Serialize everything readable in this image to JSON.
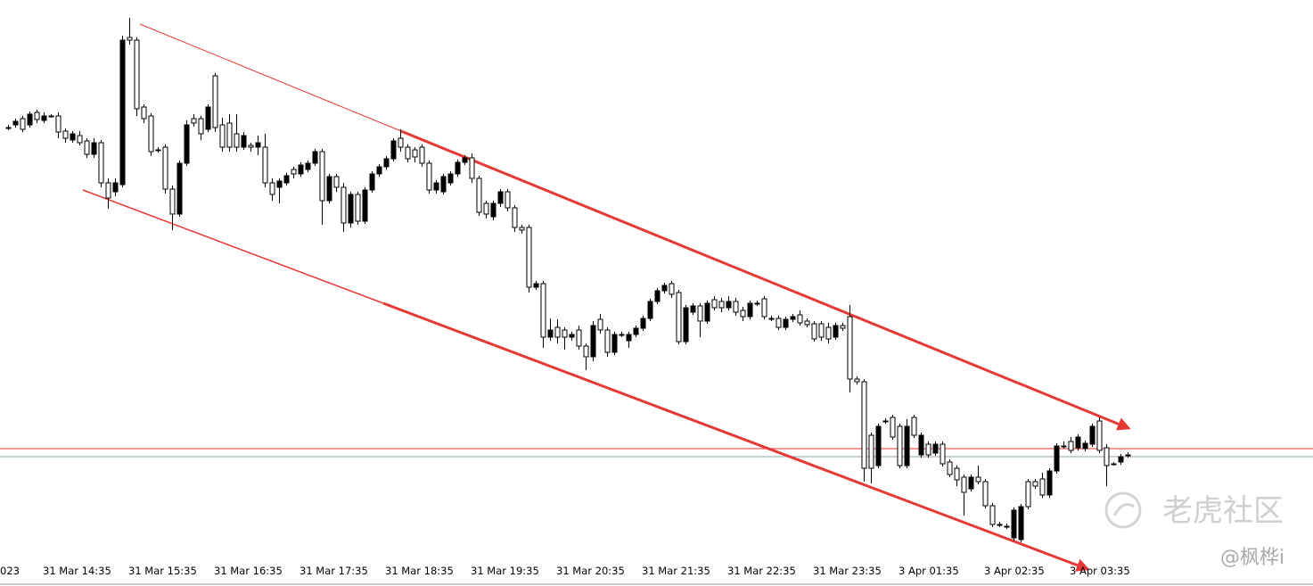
{
  "chart_data": {
    "type": "candlestick",
    "clipped_label": "023",
    "categories": [
      null,
      null,
      null,
      null,
      null,
      "31 Mar 14:35",
      null,
      null,
      null,
      null,
      null,
      null,
      null,
      null,
      null,
      null,
      null,
      "31 Mar 15:35",
      null,
      null,
      null,
      null,
      null,
      null,
      null,
      null,
      null,
      null,
      null,
      "31 Mar 16:35",
      null,
      null,
      null,
      null,
      null,
      null,
      null,
      null,
      null,
      null,
      null,
      "31 Mar 17:35",
      null,
      null,
      null,
      null,
      null,
      null,
      null,
      null,
      null,
      null,
      null,
      "31 Mar 18:35",
      null,
      null,
      null,
      null,
      null,
      null,
      null,
      null,
      null,
      null,
      null,
      "31 Mar 19:35",
      null,
      null,
      null,
      null,
      null,
      null,
      null,
      null,
      null,
      null,
      null,
      "31 Mar 20:35",
      null,
      null,
      null,
      null,
      null,
      null,
      null,
      null,
      null,
      null,
      null,
      "31 Mar 21:35",
      null,
      null,
      null,
      null,
      null,
      null,
      null,
      null,
      null,
      null,
      null,
      "31 Mar 22:35",
      null,
      null,
      null,
      null,
      null,
      null,
      null,
      null,
      null,
      null,
      null,
      "31 Mar 23:35",
      null,
      null,
      null,
      null,
      null,
      null,
      null,
      null,
      null,
      null,
      null,
      "3 Apr 01:35",
      null,
      null,
      null,
      null,
      null,
      null,
      null,
      null,
      null,
      null,
      null,
      "3 Apr 02:35",
      null,
      null,
      null,
      null,
      null,
      null,
      null,
      null,
      null,
      null,
      null,
      "3 Apr 03:35",
      null,
      null,
      null,
      null,
      null,
      null,
      null,
      null
    ],
    "open": [
      857,
      860,
      867,
      860,
      874,
      865,
      870,
      870,
      853,
      843,
      848,
      842,
      827,
      840,
      795,
      785,
      793,
      958,
      955,
      880,
      870,
      832,
      835,
      788,
      760,
      817,
      867,
      867,
      855,
      915,
      860,
      862,
      850,
      835,
      837,
      835,
      835,
      795,
      790,
      795,
      810,
      805,
      810,
      817,
      830,
      775,
      802,
      790,
      750,
      782,
      752,
      787,
      805,
      813,
      822,
      845,
      835,
      832,
      835,
      817,
      787,
      785,
      795,
      805,
      818,
      823,
      800,
      772,
      757,
      772,
      785,
      767,
      745,
      745,
      678,
      682,
      622,
      633,
      630,
      622,
      630,
      612,
      600,
      642,
      630,
      605,
      625,
      618,
      625,
      632,
      643,
      662,
      674,
      682,
      672,
      617,
      650,
      657,
      640,
      664,
      662,
      655,
      662,
      652,
      645,
      660,
      665,
      643,
      643,
      633,
      642,
      647,
      640,
      637,
      637,
      633,
      622,
      635,
      645,
      575,
      572,
      512,
      478,
      528,
      532,
      522,
      478,
      532,
      490,
      502,
      492,
      502,
      482,
      475,
      465,
      452,
      465,
      460,
      433,
      412,
      410,
      397,
      395,
      460,
      460,
      463,
      445,
      472,
      500,
      505,
      498,
      497,
      502,
      528,
      498,
      480,
      482,
      490
    ],
    "high": [
      860,
      867,
      870,
      875,
      877,
      874,
      872,
      874,
      856,
      853,
      853,
      845,
      845,
      843,
      800,
      800,
      960,
      980,
      958,
      883,
      873,
      835,
      838,
      792,
      820,
      865,
      872,
      870,
      883,
      918,
      868,
      872,
      872,
      852,
      840,
      848,
      850,
      800,
      800,
      806,
      813,
      818,
      820,
      833,
      833,
      805,
      805,
      795,
      785,
      785,
      790,
      808,
      816,
      825,
      845,
      855,
      838,
      835,
      838,
      820,
      798,
      805,
      808,
      821,
      826,
      828,
      803,
      775,
      775,
      788,
      788,
      770,
      748,
      748,
      685,
      685,
      643,
      642,
      633,
      628,
      635,
      615,
      640,
      648,
      633,
      628,
      628,
      628,
      635,
      646,
      665,
      677,
      683,
      685,
      675,
      658,
      660,
      660,
      663,
      668,
      666,
      668,
      666,
      656,
      663,
      663,
      668,
      646,
      646,
      645,
      648,
      652,
      643,
      640,
      640,
      638,
      638,
      638,
      658,
      578,
      575,
      515,
      525,
      531,
      535,
      525,
      530,
      535,
      515,
      505,
      505,
      505,
      485,
      478,
      468,
      468,
      478,
      463,
      436,
      415,
      413,
      431,
      435,
      463,
      463,
      470,
      475,
      503,
      505,
      510,
      513,
      506,
      525,
      532,
      502,
      482,
      491,
      493
    ],
    "low": [
      854,
      857,
      852,
      857,
      862,
      862,
      868,
      845,
      840,
      840,
      837,
      823,
      823,
      790,
      766,
      780,
      790,
      950,
      870,
      862,
      825,
      829,
      783,
      742,
      757,
      814,
      858,
      843,
      852,
      852,
      830,
      830,
      830,
      832,
      830,
      826,
      790,
      775,
      772,
      792,
      800,
      802,
      807,
      814,
      748,
      772,
      785,
      740,
      745,
      748,
      749,
      784,
      802,
      810,
      819,
      830,
      818,
      818,
      813,
      783,
      783,
      782,
      792,
      802,
      815,
      795,
      758,
      755,
      753,
      768,
      763,
      740,
      738,
      672,
      675,
      610,
      618,
      615,
      608,
      618,
      608,
      585,
      595,
      626,
      600,
      602,
      622,
      610,
      622,
      629,
      640,
      659,
      671,
      666,
      614,
      614,
      647,
      622,
      637,
      652,
      650,
      652,
      646,
      640,
      642,
      657,
      642,
      640,
      630,
      630,
      639,
      635,
      633,
      617,
      618,
      615,
      619,
      629,
      560,
      569,
      460,
      458,
      475,
      525,
      507,
      475,
      475,
      509,
      487,
      487,
      489,
      477,
      465,
      455,
      422,
      449,
      457,
      430,
      409,
      409,
      407,
      394,
      392,
      429,
      452,
      442,
      442,
      469,
      497,
      492,
      495,
      494,
      499,
      492,
      455,
      478,
      479,
      487
    ],
    "close": [
      857,
      864,
      855,
      872,
      866,
      870,
      870,
      852,
      845,
      850,
      840,
      827,
      840,
      795,
      778,
      795,
      955,
      955,
      878,
      867,
      830,
      832,
      788,
      760,
      817,
      860,
      862,
      850,
      880,
      857,
      835,
      835,
      835,
      848,
      835,
      840,
      795,
      782,
      797,
      803,
      805,
      815,
      817,
      830,
      775,
      802,
      790,
      750,
      782,
      752,
      787,
      805,
      813,
      822,
      842,
      835,
      822,
      824,
      817,
      787,
      795,
      802,
      805,
      818,
      823,
      800,
      762,
      760,
      772,
      785,
      767,
      745,
      742,
      678,
      682,
      622,
      630,
      622,
      622,
      625,
      612,
      600,
      635,
      630,
      605,
      625,
      625,
      625,
      632,
      643,
      662,
      674,
      680,
      670,
      617,
      655,
      657,
      640,
      660,
      655,
      655,
      662,
      650,
      645,
      660,
      660,
      645,
      643,
      633,
      642,
      645,
      638,
      636,
      620,
      622,
      620,
      635,
      632,
      575,
      572,
      475,
      475,
      522,
      528,
      510,
      478,
      522,
      512,
      512,
      490,
      502,
      480,
      468,
      462,
      448,
      465,
      460,
      433,
      412,
      412,
      410,
      428,
      432,
      432,
      455,
      445,
      472,
      500,
      500,
      495,
      510,
      503,
      522,
      495,
      478,
      480,
      488,
      490
    ],
    "up_color": "#000000",
    "down_color": "#ffffff",
    "edge_color": "#000000",
    "ylim": [
      372,
      1000
    ],
    "levels": [
      {
        "value": 497,
        "color": "#e8302c"
      },
      {
        "value": 488,
        "color": "#8aa8a8"
      }
    ],
    "watermark": "老虎社区",
    "author": "@枫桦i"
  }
}
